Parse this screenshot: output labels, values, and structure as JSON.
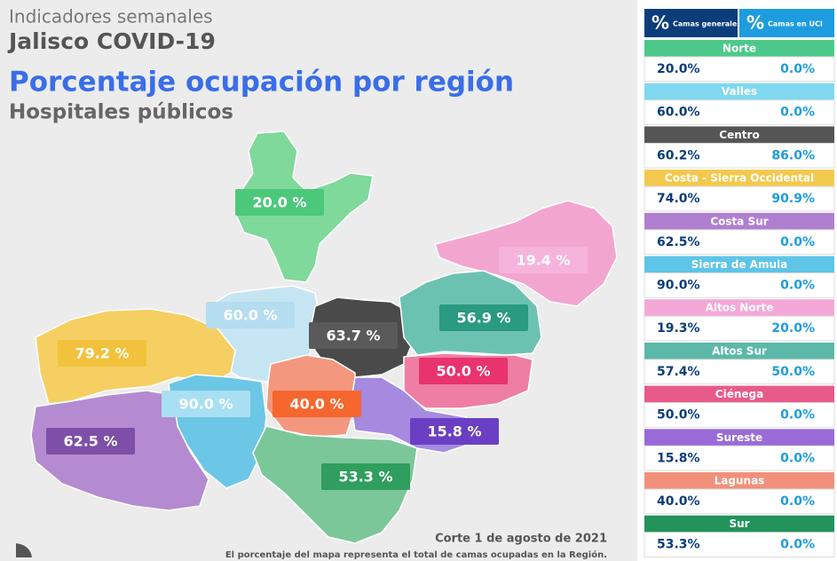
{
  "header": {
    "subtitle": "Indicadores semanales",
    "title": "Jalisco COVID-19",
    "heading": "Porcentaje ocupación por región",
    "subheading": "Hospitales públicos"
  },
  "map": {
    "regions": [
      {
        "label": "20.0 %",
        "color": "#7ed99a",
        "label_color": "#4cc87a"
      },
      {
        "label": "19.4 %",
        "color": "#f2a6cf",
        "label_color": "#f6b4dc"
      },
      {
        "label": "60.0 %",
        "color": "#c6e5f3",
        "label_color": "#b5ddf0"
      },
      {
        "label": "63.7 %",
        "color": "#4a4a4a",
        "label_color": "#5a5a5a"
      },
      {
        "label": "56.9 %",
        "color": "#6cc2b0",
        "label_color": "#2a9a80"
      },
      {
        "label": "79.2 %",
        "color": "#f5cf62",
        "label_color": "#f2c23c"
      },
      {
        "label": "50.0 %",
        "color": "#ee7ea4",
        "label_color": "#e8336e"
      },
      {
        "label": "90.0 %",
        "color": "#6cc6e6",
        "label_color": "#a9dff2"
      },
      {
        "label": "40.0 %",
        "color": "#f3987e",
        "label_color": "#f5672e"
      },
      {
        "label": "15.8 %",
        "color": "#a58ae0",
        "label_color": "#6b3fc4"
      },
      {
        "label": "62.5 %",
        "color": "#b48bd0",
        "label_color": "#7d4fa8"
      },
      {
        "label": "53.3 %",
        "color": "#7cc79a",
        "label_color": "#2f9e5e"
      }
    ]
  },
  "footer": {
    "date": "Corte 1 de agosto de 2021",
    "note": "El porcentaje del mapa representa el total de camas ocupadas en la Región."
  },
  "table": {
    "columns": [
      {
        "symbol": "%",
        "label": "Camas generales",
        "color": "#0a3d7a"
      },
      {
        "symbol": "%",
        "label": "Camas en UCI",
        "color": "#1d9ce0"
      }
    ],
    "rows": [
      {
        "region": "Norte",
        "color": "#4cc98a",
        "general": "20.0%",
        "uci": "0.0%"
      },
      {
        "region": "Valles",
        "color": "#7fd8ee",
        "general": "60.0%",
        "uci": "0.0%"
      },
      {
        "region": "Centro",
        "color": "#555555",
        "general": "60.2%",
        "uci": "86.0%"
      },
      {
        "region": "Costa - Sierra Occidental",
        "color": "#f2c94c",
        "general": "74.0%",
        "uci": "90.9%"
      },
      {
        "region": "Costa Sur",
        "color": "#b07fd0",
        "general": "62.5%",
        "uci": "0.0%"
      },
      {
        "region": "Sierra de Amula",
        "color": "#5ec4e8",
        "general": "90.0%",
        "uci": "0.0%"
      },
      {
        "region": "Altos Norte",
        "color": "#f4a8d8",
        "general": "19.3%",
        "uci": "20.0%"
      },
      {
        "region": "Altos Sur",
        "color": "#5cb8a8",
        "general": "57.4%",
        "uci": "50.0%"
      },
      {
        "region": "Ciénega",
        "color": "#e85a8a",
        "general": "50.0%",
        "uci": "0.0%"
      },
      {
        "region": "Sureste",
        "color": "#9a6ad8",
        "general": "15.8%",
        "uci": "0.0%"
      },
      {
        "region": "Lagunas",
        "color": "#f0907a",
        "general": "40.0%",
        "uci": "0.0%"
      },
      {
        "region": "Sur",
        "color": "#22935a",
        "general": "53.3%",
        "uci": "0.0%"
      }
    ]
  }
}
